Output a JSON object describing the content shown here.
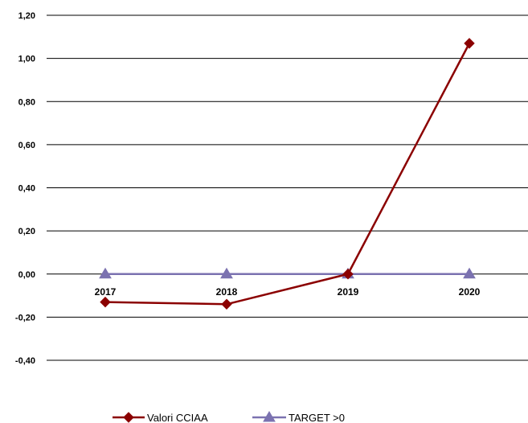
{
  "chart_data": {
    "type": "line",
    "categories": [
      "2017",
      "2018",
      "2019",
      "2020"
    ],
    "series": [
      {
        "name": "Valori CCIAA",
        "values": [
          -0.13,
          -0.14,
          0.0,
          1.07
        ],
        "color": "#8b0000",
        "marker": "diamond"
      },
      {
        "name": "TARGET >0",
        "values": [
          0,
          0,
          0,
          0
        ],
        "color": "#7b72b0",
        "marker": "triangle"
      }
    ],
    "yticks": [
      1.2,
      1.0,
      0.8,
      0.6,
      0.4,
      0.2,
      0.0,
      -0.2,
      -0.4
    ],
    "ytick_labels": [
      "1,20",
      "1,00",
      "0,80",
      "0,60",
      "0,40",
      "0,20",
      "0,00",
      "-0,20",
      "-0,40"
    ],
    "ylim": [
      -0.4,
      1.2
    ],
    "grid": true,
    "legend_position": "bottom"
  }
}
